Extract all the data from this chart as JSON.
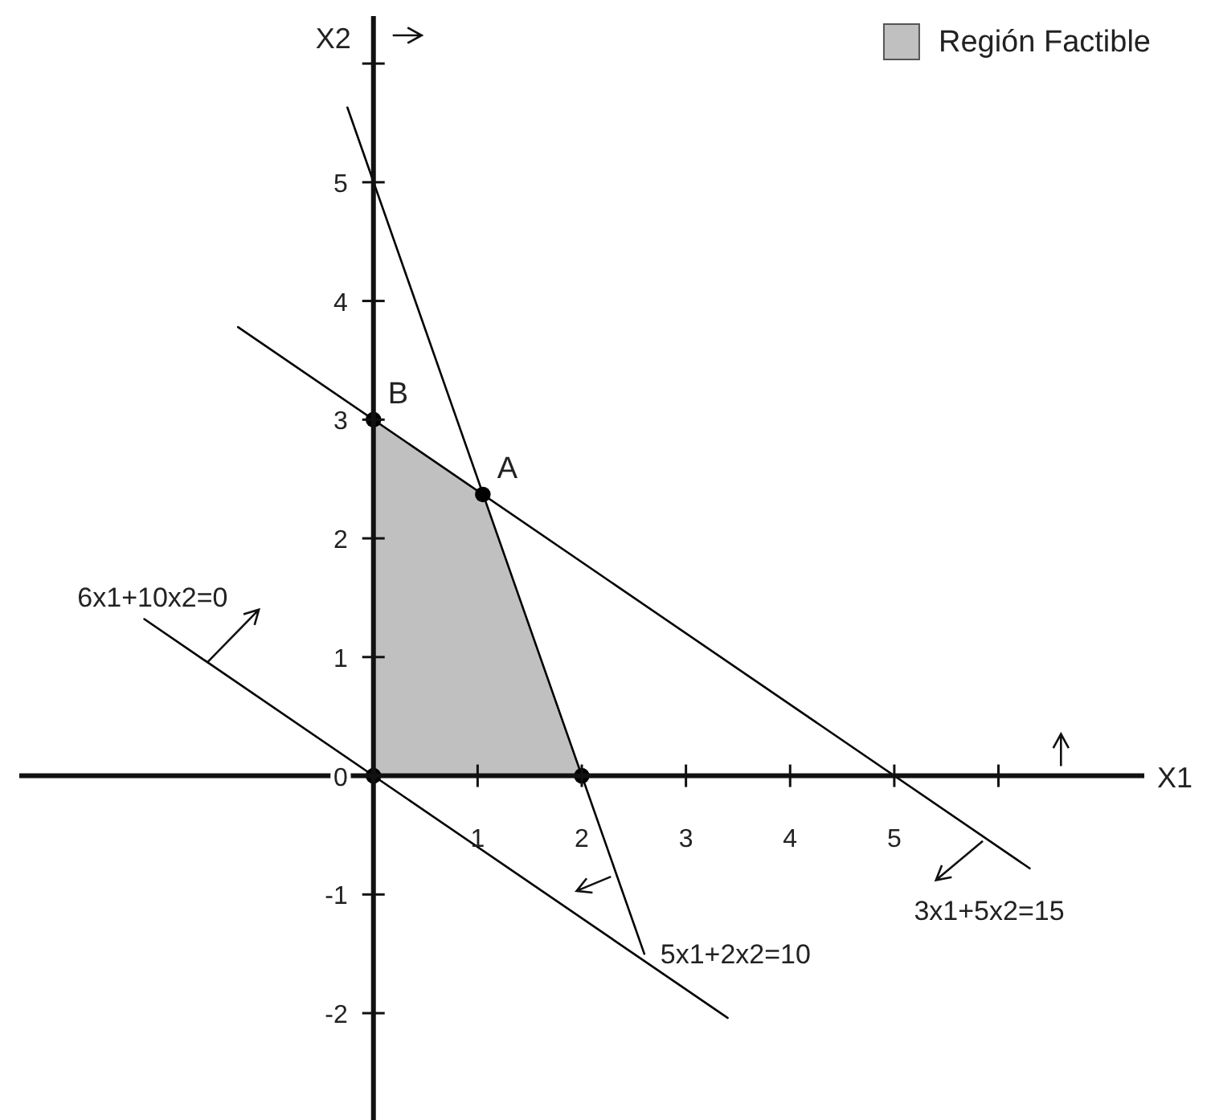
{
  "chart_data": {
    "type": "line",
    "xlabel": "X1",
    "ylabel": "X2",
    "xlim": [
      -3.4,
      7.4
    ],
    "ylim": [
      -2.9,
      6.4
    ],
    "xticks": [
      1,
      2,
      3,
      4,
      5,
      {
        "value": 6,
        "label": null
      }
    ],
    "yticks": [
      -2,
      -1,
      0,
      1,
      2,
      3,
      4,
      5,
      {
        "value": 6,
        "label": null
      }
    ],
    "grid": false,
    "legend": "top right",
    "series": [
      {
        "name": "Región Factible",
        "type": "area",
        "color": "#c0c0c0",
        "x": [
          0,
          1.05,
          2
        ],
        "values": [
          3,
          2.37,
          0
        ]
      },
      {
        "color": "#000000",
        "x": [
          -0.25,
          2.6
        ],
        "values": [
          5.63,
          -1.5
        ]
      },
      {
        "color": "#000000",
        "x": [
          -1.3,
          6.3
        ],
        "values": [
          3.78,
          -0.78
        ]
      },
      {
        "color": "#000000",
        "x": [
          -2.2,
          3.4
        ],
        "values": [
          1.32,
          -2.04
        ]
      },
      {
        "type": "scatter",
        "marker": "circle",
        "color": "#000000",
        "x": [
          0,
          0,
          1.05,
          2
        ],
        "values": [
          0,
          3,
          2.37,
          0
        ]
      }
    ],
    "annotations": [
      {
        "text": "A",
        "x": 1.05,
        "y": 2.37
      },
      {
        "text": "B",
        "x": 0,
        "y": 3
      },
      {
        "text": "6x1+10x2=0",
        "x": -2.2,
        "y": 1.32
      },
      {
        "text": "5x1+2x2=10",
        "x": 2.6,
        "y": -1.5
      },
      {
        "text": "3x1+5x2=15",
        "x": 6.3,
        "y": -0.78
      }
    ]
  }
}
